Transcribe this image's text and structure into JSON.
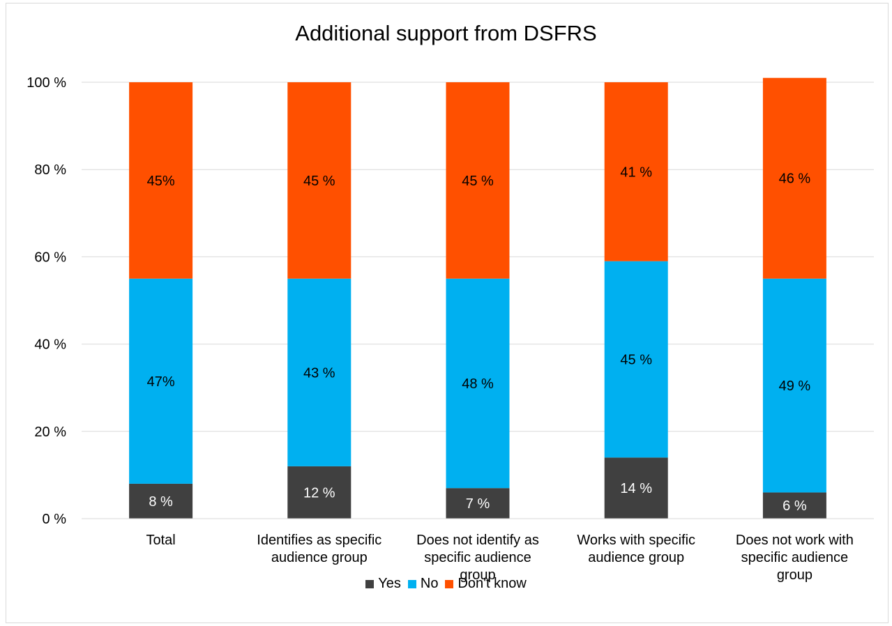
{
  "chart_data": {
    "type": "bar",
    "stacked": true,
    "title": "Additional support from DSFRS",
    "ylim": [
      0,
      100
    ],
    "ytick_labels": [
      "0 %",
      "20 %",
      "40 %",
      "60 %",
      "80 %",
      "100 %"
    ],
    "grid": true,
    "legend_position": "bottom",
    "categories": [
      [
        "Total"
      ],
      [
        "Identifies as specific",
        "audience group"
      ],
      [
        "Does not identify as",
        "specific audience",
        "group"
      ],
      [
        "Works with specific",
        "audience  group"
      ],
      [
        "Does not work with",
        "specific audience",
        "group"
      ]
    ],
    "series": [
      {
        "name": "Yes",
        "color": "#404040",
        "values": [
          8,
          12,
          7,
          14,
          6
        ],
        "labels": [
          "8 %",
          "12 %",
          "7 %",
          "14 %",
          "6 %"
        ]
      },
      {
        "name": "No",
        "color": "#00b0f0",
        "values": [
          47,
          43,
          48,
          45,
          49
        ],
        "labels": [
          "47%",
          "43 %",
          "48 %",
          "45 %",
          "49 %"
        ]
      },
      {
        "name": "Don't know",
        "color": "#ff5000",
        "values": [
          45,
          45,
          45,
          41,
          46
        ],
        "labels": [
          "45%",
          "45 %",
          "45 %",
          "41 %",
          "46 %"
        ]
      }
    ]
  }
}
